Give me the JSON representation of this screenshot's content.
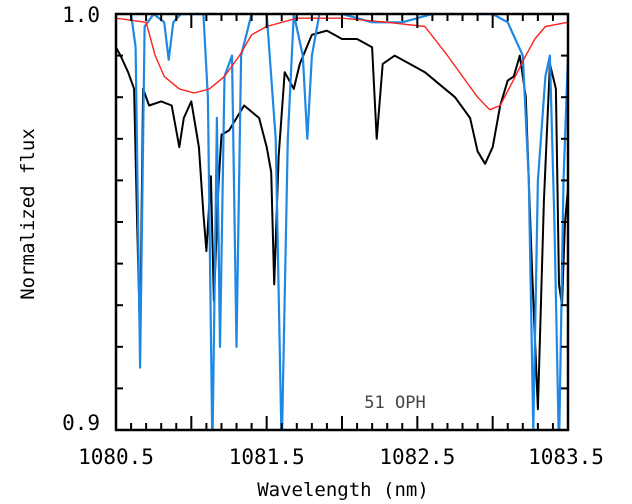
{
  "chart_data": {
    "type": "line",
    "title": "",
    "xlabel": "Wavelength (nm)",
    "ylabel": "Normalized flux",
    "xlim": [
      1080.5,
      1083.5
    ],
    "ylim": [
      0.9,
      1.0
    ],
    "x_ticks": [
      "1080.5",
      "1081.5",
      "1082.5",
      "1083.5"
    ],
    "y_ticks": [
      "0.9",
      "1.0"
    ],
    "annotation": "51 OPH",
    "grid": false,
    "legend": "none",
    "colors": {
      "observed": "#000000",
      "telluric": "#1e88e5",
      "model": "#ff2020"
    },
    "series": [
      {
        "role": "observed",
        "color": "#000000",
        "points": [
          [
            1080.5,
            0.992
          ],
          [
            1080.53,
            0.99
          ],
          [
            1080.58,
            0.986
          ],
          [
            1080.62,
            0.982
          ],
          [
            1080.64,
            0.95
          ],
          [
            1080.66,
            0.922
          ],
          [
            1080.68,
            0.982
          ],
          [
            1080.72,
            0.978
          ],
          [
            1080.8,
            0.979
          ],
          [
            1080.87,
            0.978
          ],
          [
            1080.92,
            0.968
          ],
          [
            1080.95,
            0.975
          ],
          [
            1081.0,
            0.979
          ],
          [
            1081.05,
            0.968
          ],
          [
            1081.08,
            0.952
          ],
          [
            1081.1,
            0.943
          ],
          [
            1081.13,
            0.961
          ],
          [
            1081.15,
            0.931
          ],
          [
            1081.18,
            0.959
          ],
          [
            1081.2,
            0.971
          ],
          [
            1081.25,
            0.972
          ],
          [
            1081.35,
            0.978
          ],
          [
            1081.45,
            0.975
          ],
          [
            1081.5,
            0.968
          ],
          [
            1081.53,
            0.962
          ],
          [
            1081.55,
            0.935
          ],
          [
            1081.58,
            0.966
          ],
          [
            1081.62,
            0.986
          ],
          [
            1081.68,
            0.982
          ],
          [
            1081.72,
            0.988
          ],
          [
            1081.8,
            0.995
          ],
          [
            1081.9,
            0.996
          ],
          [
            1082.0,
            0.994
          ],
          [
            1082.1,
            0.994
          ],
          [
            1082.2,
            0.992
          ],
          [
            1082.23,
            0.97
          ],
          [
            1082.27,
            0.988
          ],
          [
            1082.35,
            0.99
          ],
          [
            1082.45,
            0.988
          ],
          [
            1082.55,
            0.986
          ],
          [
            1082.65,
            0.983
          ],
          [
            1082.75,
            0.98
          ],
          [
            1082.85,
            0.975
          ],
          [
            1082.9,
            0.967
          ],
          [
            1082.95,
            0.964
          ],
          [
            1083.0,
            0.968
          ],
          [
            1083.05,
            0.978
          ],
          [
            1083.1,
            0.984
          ],
          [
            1083.14,
            0.985
          ],
          [
            1083.18,
            0.99
          ],
          [
            1083.22,
            0.98
          ],
          [
            1083.26,
            0.94
          ],
          [
            1083.3,
            0.905
          ],
          [
            1083.34,
            0.955
          ],
          [
            1083.38,
            0.988
          ],
          [
            1083.42,
            0.982
          ],
          [
            1083.44,
            0.935
          ],
          [
            1083.46,
            0.93
          ],
          [
            1083.48,
            0.95
          ],
          [
            1083.5,
            0.958
          ]
        ]
      },
      {
        "role": "telluric",
        "color": "#1e88e5",
        "points": [
          [
            1080.5,
            1.0
          ],
          [
            1080.6,
            1.0
          ],
          [
            1080.63,
            0.992
          ],
          [
            1080.66,
            0.915
          ],
          [
            1080.69,
            0.997
          ],
          [
            1080.75,
            1.0
          ],
          [
            1080.82,
            0.998
          ],
          [
            1080.85,
            0.989
          ],
          [
            1080.88,
            0.998
          ],
          [
            1080.93,
            1.0
          ],
          [
            1081.08,
            1.0
          ],
          [
            1081.11,
            0.98
          ],
          [
            1081.14,
            0.895
          ],
          [
            1081.17,
            0.975
          ],
          [
            1081.19,
            0.92
          ],
          [
            1081.22,
            0.985
          ],
          [
            1081.27,
            0.99
          ],
          [
            1081.3,
            0.92
          ],
          [
            1081.33,
            0.99
          ],
          [
            1081.4,
            1.0
          ],
          [
            1081.5,
            1.0
          ],
          [
            1081.56,
            0.97
          ],
          [
            1081.6,
            0.895
          ],
          [
            1081.64,
            0.97
          ],
          [
            1081.68,
            1.0
          ],
          [
            1081.74,
            0.99
          ],
          [
            1081.77,
            0.97
          ],
          [
            1081.8,
            0.99
          ],
          [
            1081.85,
            1.0
          ],
          [
            1082.0,
            1.0
          ],
          [
            1082.2,
            0.998
          ],
          [
            1082.4,
            0.998
          ],
          [
            1082.6,
            1.0
          ],
          [
            1082.8,
            1.0
          ],
          [
            1083.0,
            1.0
          ],
          [
            1083.1,
            0.998
          ],
          [
            1083.2,
            0.99
          ],
          [
            1083.24,
            0.96
          ],
          [
            1083.27,
            0.9
          ],
          [
            1083.3,
            0.96
          ],
          [
            1083.35,
            0.985
          ],
          [
            1083.38,
            0.99
          ],
          [
            1083.41,
            0.95
          ],
          [
            1083.44,
            0.895
          ],
          [
            1083.47,
            0.96
          ],
          [
            1083.5,
            0.99
          ]
        ]
      },
      {
        "role": "model",
        "color": "#ff2020",
        "points": [
          [
            1080.5,
            0.999
          ],
          [
            1080.7,
            0.998
          ],
          [
            1080.76,
            0.99
          ],
          [
            1080.82,
            0.985
          ],
          [
            1080.92,
            0.982
          ],
          [
            1081.02,
            0.981
          ],
          [
            1081.12,
            0.982
          ],
          [
            1081.22,
            0.985
          ],
          [
            1081.32,
            0.99
          ],
          [
            1081.4,
            0.995
          ],
          [
            1081.5,
            0.997
          ],
          [
            1081.7,
            0.999
          ],
          [
            1082.0,
            0.999
          ],
          [
            1082.3,
            0.998
          ],
          [
            1082.55,
            0.997
          ],
          [
            1082.7,
            0.99
          ],
          [
            1082.8,
            0.985
          ],
          [
            1082.9,
            0.98
          ],
          [
            1082.98,
            0.977
          ],
          [
            1083.05,
            0.978
          ],
          [
            1083.15,
            0.985
          ],
          [
            1083.22,
            0.99
          ],
          [
            1083.28,
            0.994
          ],
          [
            1083.35,
            0.997
          ],
          [
            1083.5,
            0.998
          ]
        ]
      }
    ]
  }
}
